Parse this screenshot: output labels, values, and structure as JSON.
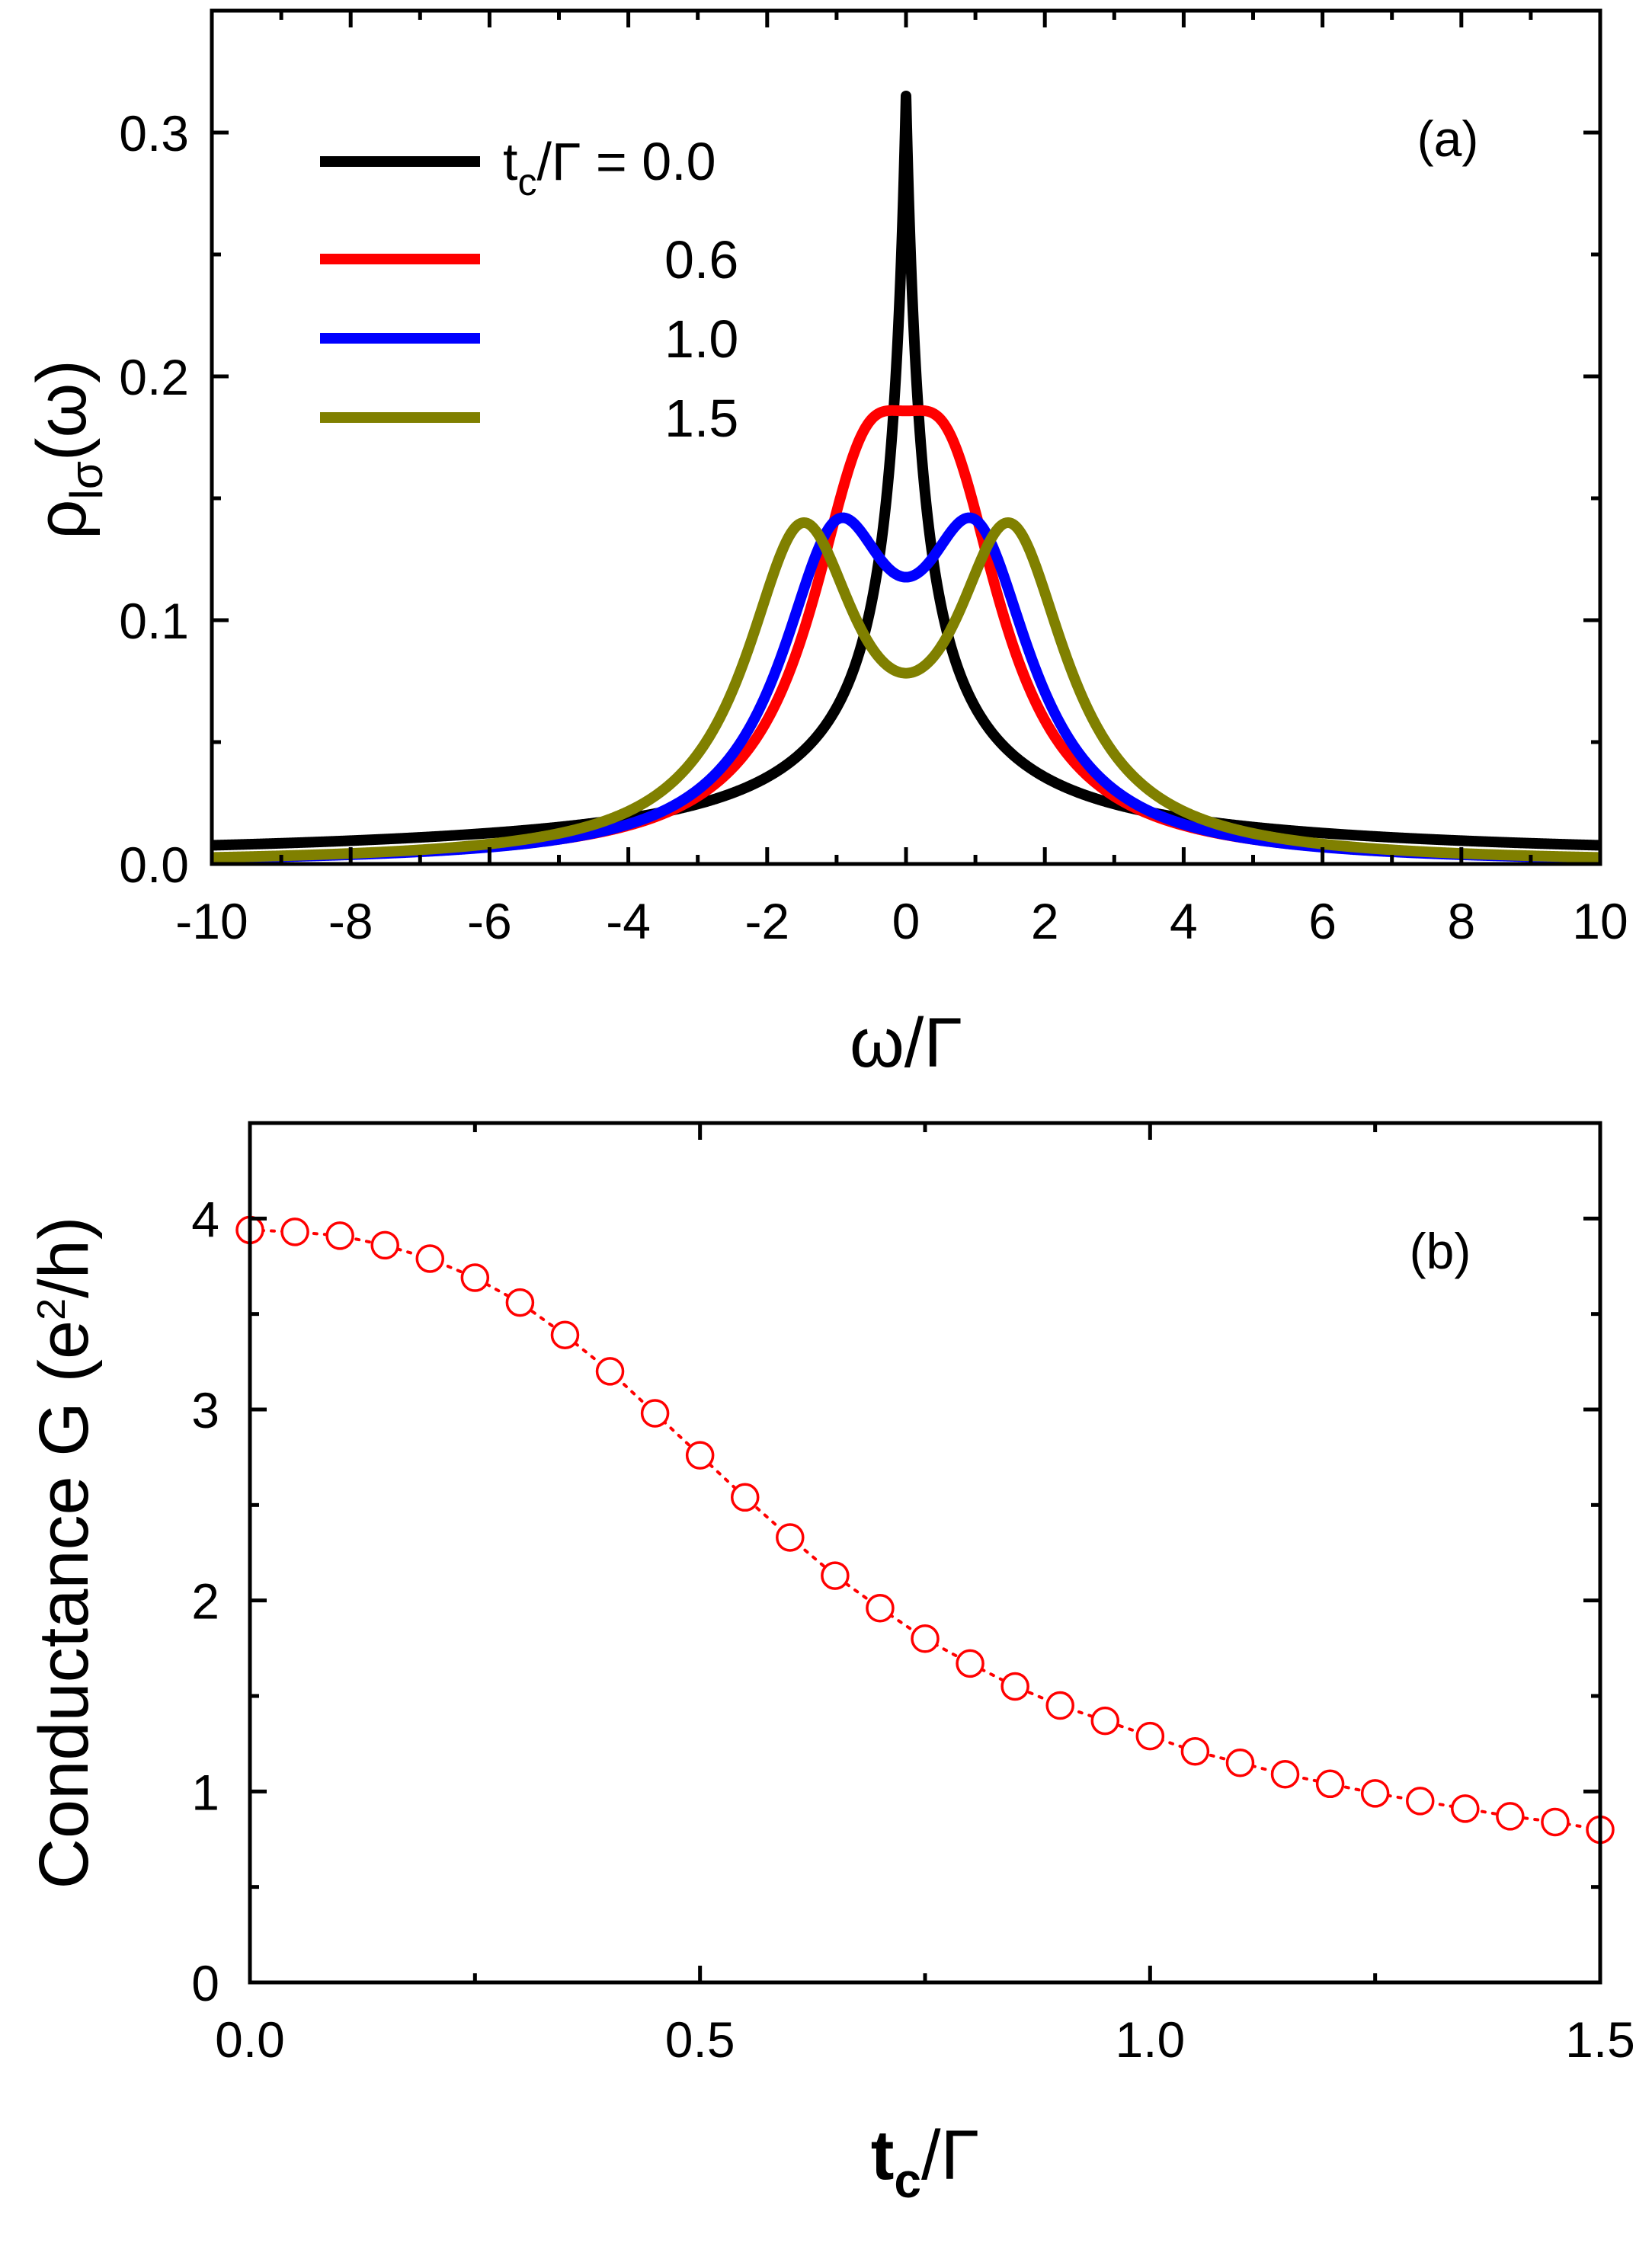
{
  "chart_data": [
    {
      "type": "line",
      "panel_label": "(a)",
      "xlabel": "ω/Γ",
      "ylabel": {
        "base": "ρ",
        "sub": "lσ",
        "rest": "(ω)"
      },
      "xlim": [
        -10,
        10
      ],
      "ylim": [
        0,
        0.35
      ],
      "xticks": [
        -10,
        -8,
        -6,
        -4,
        -2,
        0,
        2,
        4,
        6,
        8,
        10
      ],
      "xtick_labels": [
        "-10",
        "-8",
        "-6",
        "-4",
        "-2",
        "0",
        "2",
        "4",
        "6",
        "8",
        "10"
      ],
      "yticks": [
        0.0,
        0.1,
        0.2,
        0.3
      ],
      "ytick_labels": [
        "0.0",
        "0.1",
        "0.2",
        "0.3"
      ],
      "legend": {
        "placement": "top-left",
        "title_prefix": "t",
        "title_sub": "c",
        "title_suffix": "/Γ = "
      },
      "series": [
        {
          "name": "t_c/Γ = 0.0",
          "label": "0.0",
          "tc": 0.0,
          "color": "#000000",
          "peak": 0.315
        },
        {
          "name": "t_c/Γ = 0.6",
          "label": "0.6",
          "tc": 0.6,
          "color": "#ff0000",
          "peak": 0.186
        },
        {
          "name": "t_c/Γ = 1.0",
          "label": "1.0",
          "tc": 1.0,
          "color": "#0000ff",
          "peak": 0.142
        },
        {
          "name": "t_c/Γ = 1.5",
          "label": "1.5",
          "tc": 1.5,
          "color": "#808000",
          "peak": 0.14
        }
      ],
      "annotations": {
        "t_c/Γ = 1.0": {
          "peaks_at": [
            -0.8,
            0.8
          ],
          "dip_at_0": 0.102
        },
        "t_c/Γ = 1.5": {
          "peaks_at": [
            -1.5,
            1.5
          ],
          "dip_at_0": 0.064
        }
      }
    },
    {
      "type": "scatter",
      "panel_label": "(b)",
      "xlabel": {
        "base": "t",
        "sub": "c",
        "rest": "/Γ"
      },
      "ylabel": {
        "text": "Conductance G (e",
        "sup": "2",
        "rest": "/h)"
      },
      "xlim": [
        0,
        1.5
      ],
      "ylim": [
        0,
        4.5
      ],
      "xticks": [
        0.0,
        0.5,
        1.0,
        1.5
      ],
      "xtick_labels": [
        "0.0",
        "0.5",
        "1.0",
        "1.5"
      ],
      "yticks": [
        0,
        1,
        2,
        3,
        4
      ],
      "ytick_labels": [
        "0",
        "1",
        "2",
        "3",
        "4"
      ],
      "marker": "open-circle",
      "line": "dotted",
      "color": "#ff0000",
      "x": [
        0.0,
        0.05,
        0.1,
        0.15,
        0.2,
        0.25,
        0.3,
        0.35,
        0.4,
        0.45,
        0.5,
        0.55,
        0.6,
        0.65,
        0.7,
        0.75,
        0.8,
        0.85,
        0.9,
        0.95,
        1.0,
        1.05,
        1.1,
        1.15,
        1.2,
        1.25,
        1.3,
        1.35,
        1.4,
        1.45,
        1.5
      ],
      "y": [
        3.94,
        3.93,
        3.91,
        3.86,
        3.79,
        3.69,
        3.56,
        3.39,
        3.2,
        2.98,
        2.76,
        2.54,
        2.33,
        2.13,
        1.96,
        1.8,
        1.67,
        1.55,
        1.45,
        1.37,
        1.29,
        1.21,
        1.15,
        1.09,
        1.04,
        0.99,
        0.95,
        0.91,
        0.87,
        0.84,
        0.8
      ]
    }
  ]
}
